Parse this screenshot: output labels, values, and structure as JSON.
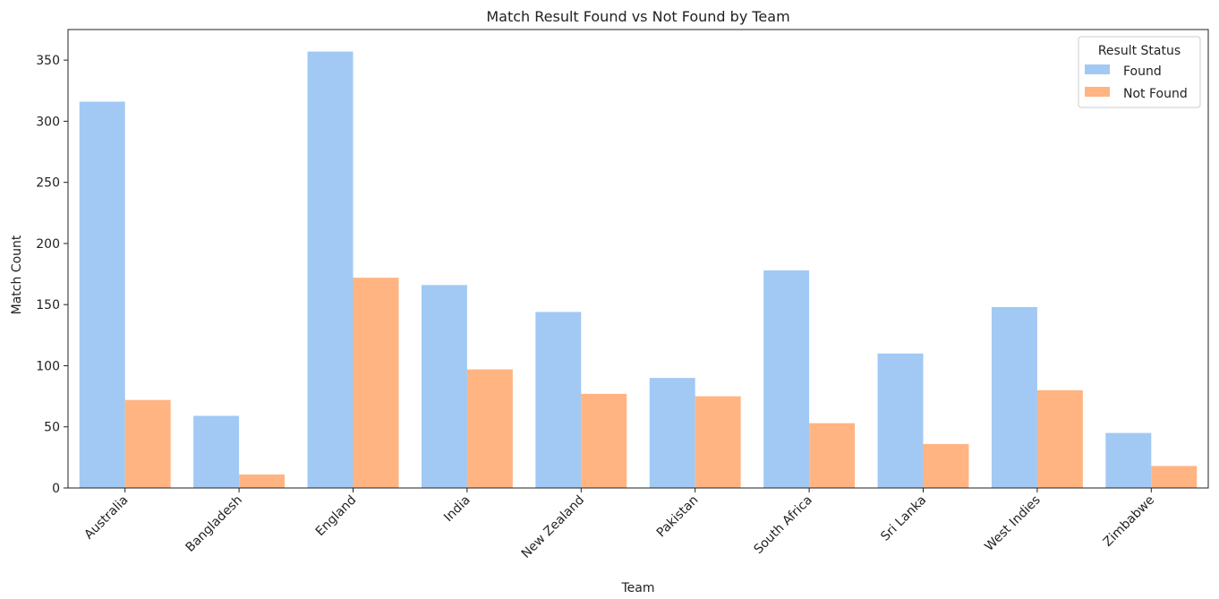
{
  "chart_data": {
    "type": "bar",
    "title": "Match Result Found vs Not Found by Team",
    "xlabel": "Team",
    "ylabel": "Match Count",
    "categories": [
      "Australia",
      "Bangladesh",
      "England",
      "India",
      "New Zealand",
      "Pakistan",
      "South Africa",
      "Sri Lanka",
      "West Indies",
      "Zimbabwe"
    ],
    "series": [
      {
        "name": "Found",
        "color": "#a1c9f4",
        "values": [
          316,
          59,
          357,
          166,
          144,
          90,
          178,
          110,
          148,
          45
        ]
      },
      {
        "name": "Not Found",
        "color": "#ffb482",
        "values": [
          72,
          11,
          172,
          97,
          77,
          75,
          53,
          36,
          80,
          18
        ]
      }
    ],
    "ylim": [
      0,
      375
    ],
    "yticks": [
      0,
      50,
      100,
      150,
      200,
      250,
      300,
      350
    ],
    "grid": false,
    "legend": {
      "title": "Result Status",
      "position": "top-right"
    }
  }
}
